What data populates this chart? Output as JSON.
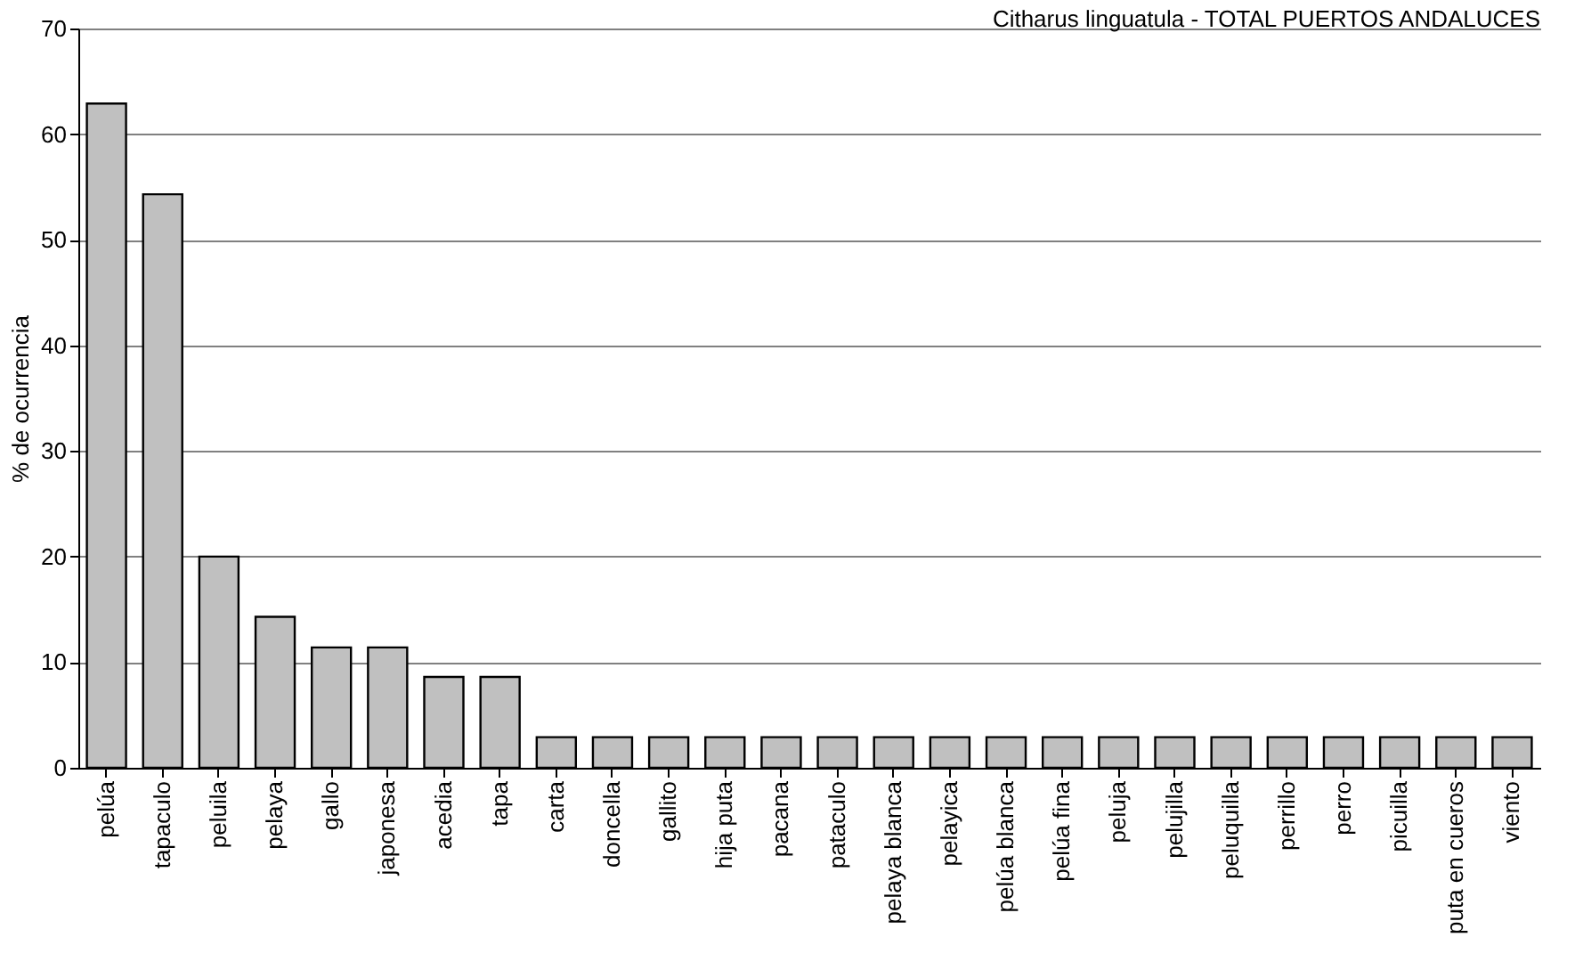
{
  "chart_data": {
    "type": "bar",
    "title": "Citharus linguatula - TOTAL PUERTOS ANDALUCES",
    "ylabel": "% de ocurrencia",
    "categories": [
      "pelúa",
      "tapaculo",
      "peluila",
      "pelaya",
      "gallo",
      "japonesa",
      "acedia",
      "tapa",
      "carta",
      "doncella",
      "gallito",
      "hija puta",
      "pacana",
      "pataculo",
      "pelaya blanca",
      "pelayica",
      "pelúa blanca",
      "pelúa fina",
      "peluja",
      "pelujilla",
      "peluquilla",
      "perrillo",
      "perro",
      "picuilla",
      "puta en cueros",
      "viento"
    ],
    "values": [
      62.9,
      54.3,
      20.0,
      14.3,
      11.4,
      11.4,
      8.6,
      8.6,
      2.9,
      2.9,
      2.9,
      2.9,
      2.9,
      2.9,
      2.9,
      2.9,
      2.9,
      2.9,
      2.9,
      2.9,
      2.9,
      2.9,
      2.9,
      2.9,
      2.9,
      2.9
    ],
    "color": "#c0c0c0",
    "ylim": [
      0,
      70
    ],
    "yticks": [
      0,
      10,
      20,
      30,
      40,
      50,
      60,
      70
    ],
    "grid": "y"
  }
}
